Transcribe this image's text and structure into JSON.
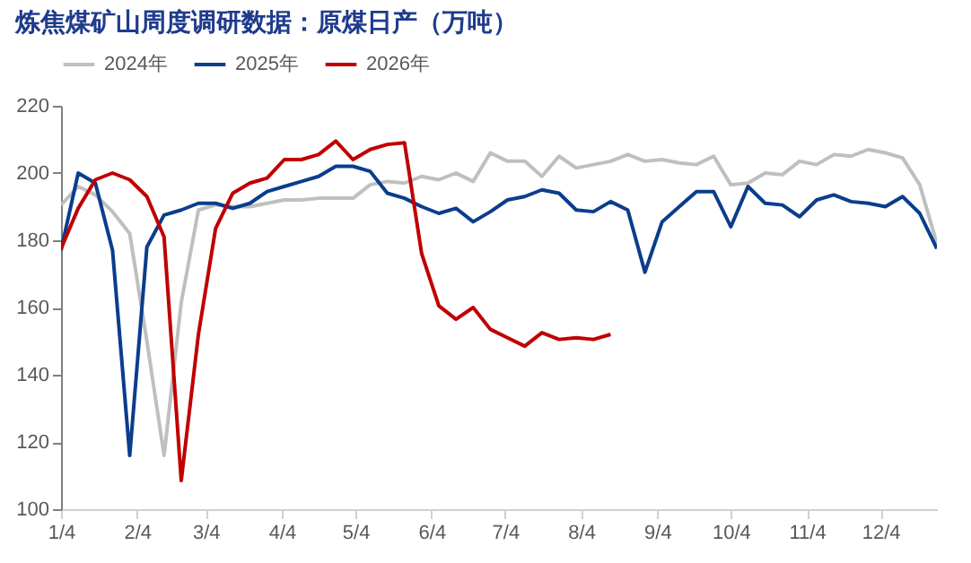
{
  "chart_data": {
    "type": "line",
    "title": "炼焦煤矿山周度调研数据：原煤日产（万吨）",
    "x": [
      "--01-04",
      "--01-11",
      "--01-18",
      "--01-25",
      "--02-01",
      "--02-08",
      "--02-15",
      "--02-22",
      "--03-01",
      "--03-08",
      "--03-15",
      "--03-22",
      "--03-29",
      "--04-05",
      "--04-12",
      "--04-19",
      "--04-26",
      "--05-03",
      "--05-10",
      "--05-17",
      "--05-24",
      "--05-31",
      "--06-07",
      "--06-14",
      "--06-21",
      "--06-28",
      "--07-05",
      "--07-12",
      "--07-19",
      "--07-26",
      "--08-02",
      "--08-09",
      "--08-16",
      "--08-23",
      "--08-30",
      "--09-06",
      "--09-13",
      "--09-20",
      "--09-27",
      "--10-04",
      "--10-11",
      "--10-18",
      "--10-25",
      "--11-01",
      "--11-08",
      "--11-15",
      "--11-22",
      "--11-29",
      "--12-06",
      "--12-13",
      "--12-20",
      "--12-27"
    ],
    "series": [
      {
        "name": "2024年",
        "color": "#bfbfbf",
        "values": [
          190.5,
          196,
          193.5,
          188.5,
          182,
          150,
          116,
          161.5,
          189,
          190.5,
          190,
          190,
          191,
          192,
          192,
          192.5,
          192.5,
          192.5,
          196.5,
          197.5,
          197,
          199,
          198,
          200,
          197.5,
          206,
          203.5,
          203.5,
          199,
          205,
          201.5,
          202.5,
          203.5,
          205.5,
          203.5,
          204,
          203,
          202.5,
          205,
          196.5,
          197,
          200,
          199.5,
          203.5,
          202.5,
          205.5,
          205,
          207,
          206,
          204.5,
          196.5,
          179
        ]
      },
      {
        "name": "2025年",
        "color": "#0b3d8c",
        "values": [
          177,
          200,
          197,
          177,
          116,
          178,
          187.5,
          189,
          191,
          191,
          189.5,
          191,
          194.5,
          196,
          197.5,
          199,
          202,
          202,
          200.5,
          194,
          192.5,
          190,
          188,
          189.5,
          185.5,
          188.5,
          192,
          193,
          195,
          194,
          189,
          188.5,
          191.5,
          189,
          170.5,
          185.5,
          190,
          194.5,
          194.5,
          184,
          196,
          191,
          190.5,
          187,
          192,
          193.5,
          191.5,
          191,
          190,
          193,
          188,
          177.5
        ]
      },
      {
        "name": "2026年",
        "color": "#c00000",
        "x": [
          "--01-04",
          "--01-11",
          "--01-18",
          "--01-25",
          "--02-01",
          "--02-08",
          "--02-15",
          "--02-22",
          "--03-01",
          "--03-08",
          "--03-15",
          "--03-22",
          "--03-29",
          "--04-05",
          "--04-12",
          "--04-19",
          "--04-26",
          "--05-03",
          "--05-10",
          "--05-17",
          "--05-24",
          "--05-31",
          "--06-07",
          "--06-14",
          "--06-21",
          "--06-28",
          "--07-05",
          "--07-12",
          "--07-19",
          "--07-26",
          "--08-02",
          "--08-09",
          "--08-16"
        ],
        "values": [
          177.5,
          189.5,
          198,
          200,
          198,
          193,
          181,
          108.5,
          152,
          183.5,
          194,
          197,
          198.5,
          204,
          204,
          205.5,
          209.5,
          204,
          207,
          208.5,
          209,
          176,
          160.5,
          156.5,
          160,
          153.5,
          151,
          148.5,
          152.5,
          150.5,
          151,
          150.5,
          152
        ]
      }
    ],
    "xlim": [
      "--01-04",
      "--12-27"
    ],
    "xticks": [
      {
        "value": "--01-04",
        "label": "1/4"
      },
      {
        "value": "--02-04",
        "label": "2/4"
      },
      {
        "value": "--03-04",
        "label": "3/4"
      },
      {
        "value": "--04-04",
        "label": "4/4"
      },
      {
        "value": "--05-04",
        "label": "5/4"
      },
      {
        "value": "--06-04",
        "label": "6/4"
      },
      {
        "value": "--07-04",
        "label": "7/4"
      },
      {
        "value": "--08-04",
        "label": "8/4"
      },
      {
        "value": "--09-04",
        "label": "9/4"
      },
      {
        "value": "--10-04",
        "label": "10/4"
      },
      {
        "value": "--11-04",
        "label": "11/4"
      },
      {
        "value": "--12-04",
        "label": "12/4"
      }
    ],
    "ylim": [
      100,
      220
    ],
    "yticks": [
      100,
      120,
      140,
      160,
      180,
      200,
      220
    ],
    "grid": false,
    "legend": "top",
    "marker": "none",
    "line_style": "solid"
  }
}
